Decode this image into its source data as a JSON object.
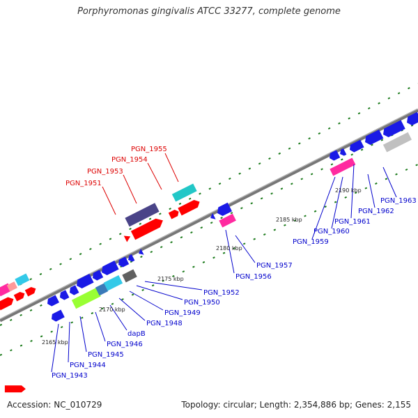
{
  "title": "Porphyromonas gingivalis ATCC 33277, complete genome",
  "footer": {
    "accession": "Accession: NC_010729",
    "topology": "Topology: circular; Length: 2,354,886 bp; Genes: 2,155"
  },
  "colors": {
    "forward_label": "#dd0000",
    "reverse_label": "#0000cc",
    "backbone": "#888888",
    "tick": "#1a7a1a"
  },
  "ticks": [
    "2165 kbp",
    "2170 kbp",
    "2175 kbp",
    "2180 kbp",
    "2185 kbp",
    "2190 kbp"
  ],
  "forward_labels": [
    "PGN_1951",
    "PGN_1953",
    "PGN_1954",
    "PGN_1955"
  ],
  "reverse_labels": [
    "PGN_1943",
    "PGN_1944",
    "PGN_1945",
    "PGN_1946",
    "dapB",
    "PGN_1948",
    "PGN_1949",
    "PGN_1950",
    "PGN_1952",
    "PGN_1956",
    "PGN_1957",
    "PGN_1959",
    "PGN_1960",
    "PGN_1961",
    "PGN_1962",
    "PGN_1963"
  ]
}
